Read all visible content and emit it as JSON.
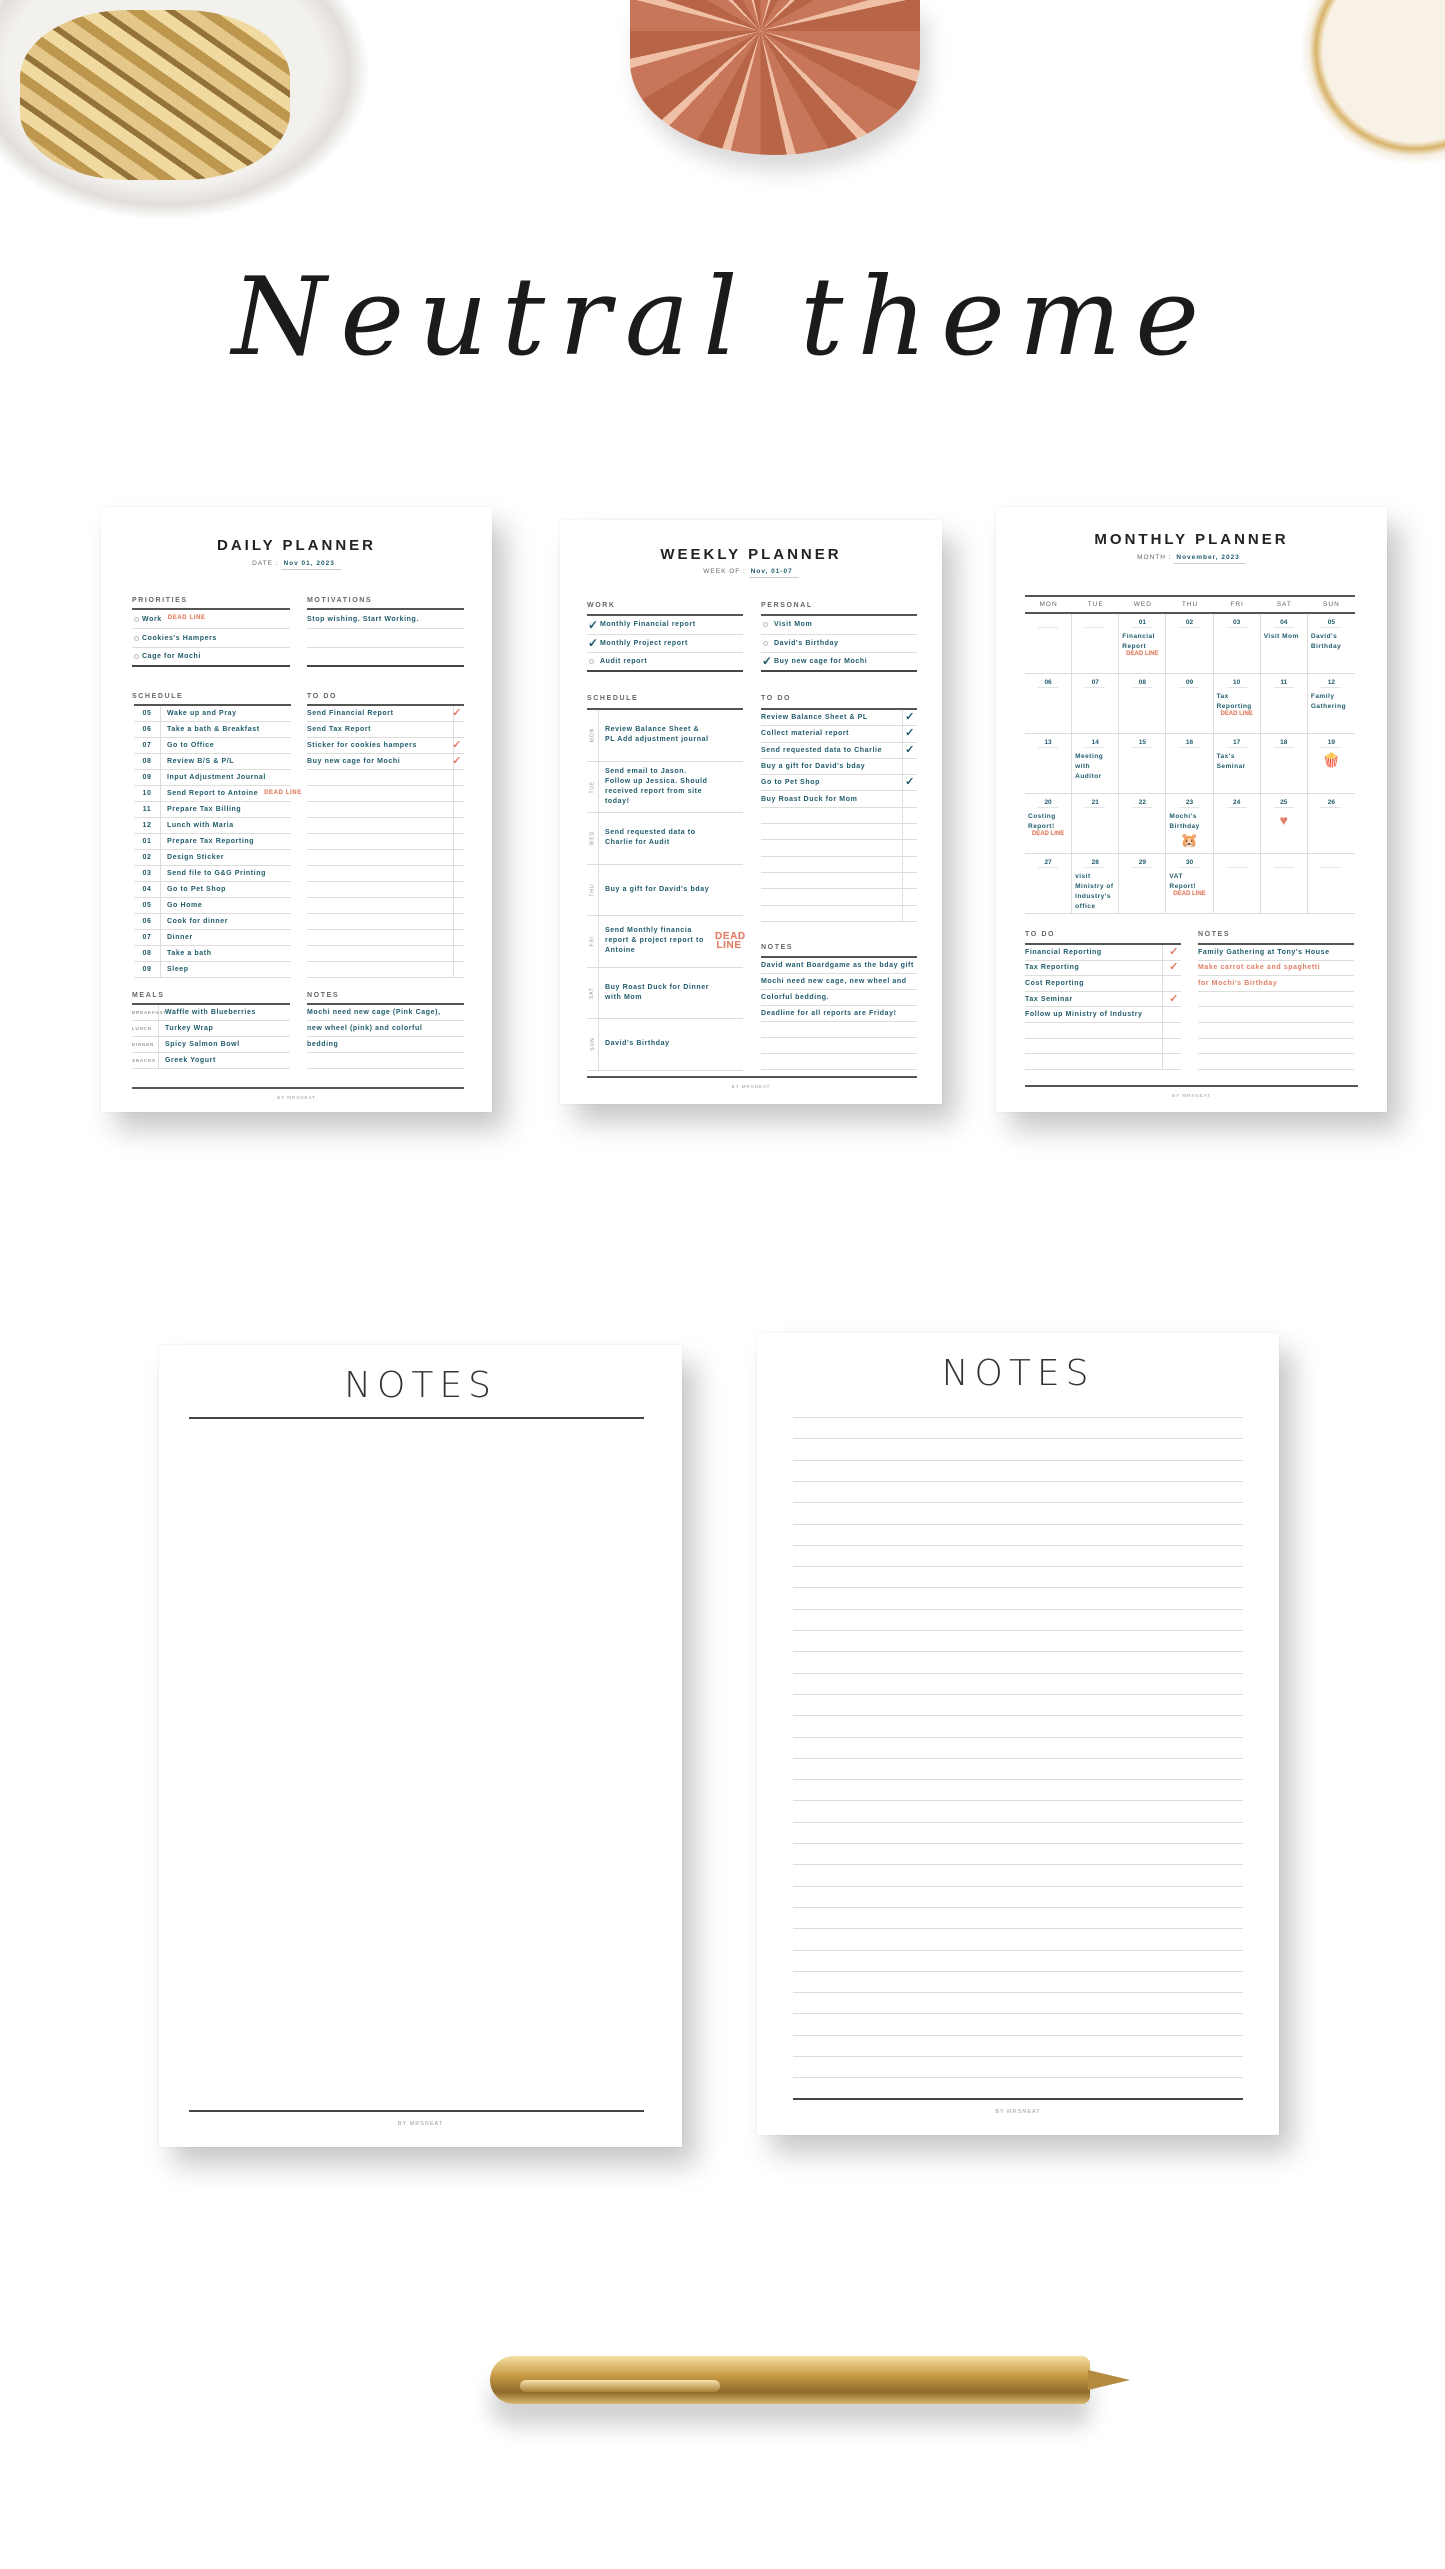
{
  "heading": "Neutral theme",
  "colors": {
    "text": "#1f5b6b",
    "accent": "#e07f66",
    "heading": "#666666"
  },
  "daily": {
    "title": "DAILY PLANNER",
    "date_label": "DATE :",
    "date": "Nov 01, 2023",
    "priorities_heading": "PRIORITIES",
    "priorities": [
      {
        "text": "Work",
        "sticker": "DEAD LINE"
      },
      {
        "text": "Cookies's Hampers"
      },
      {
        "text": "Cage for Mochi"
      }
    ],
    "motivations_heading": "MOTIVATIONS",
    "motivations": [
      "Stop wishing. Start Working.",
      "",
      ""
    ],
    "schedule_heading": "SCHEDULE",
    "schedule": [
      {
        "hour": "05",
        "task": "Wake up and Pray"
      },
      {
        "hour": "06",
        "task": "Take a bath & Breakfast"
      },
      {
        "hour": "07",
        "task": "Go to Office"
      },
      {
        "hour": "08",
        "task": "Review B/S & P/L"
      },
      {
        "hour": "09",
        "task": "Input Adjustment Journal"
      },
      {
        "hour": "10",
        "task": "Send Report to Antoine",
        "sticker": "DEAD LINE"
      },
      {
        "hour": "11",
        "task": "Prepare Tax Billing"
      },
      {
        "hour": "12",
        "task": "Lunch with Maria"
      },
      {
        "hour": "01",
        "task": "Prepare Tax Reporting"
      },
      {
        "hour": "02",
        "task": "Design Sticker"
      },
      {
        "hour": "03",
        "task": "Send file to G&G Printing"
      },
      {
        "hour": "04",
        "task": "Go to Pet Shop"
      },
      {
        "hour": "05",
        "task": "Go Home"
      },
      {
        "hour": "06",
        "task": "Cook for dinner"
      },
      {
        "hour": "07",
        "task": "Dinner"
      },
      {
        "hour": "08",
        "task": "Take a bath"
      },
      {
        "hour": "09",
        "task": "Sleep"
      }
    ],
    "todo_heading": "TO DO",
    "todo": [
      {
        "text": "Send Financial Report",
        "done": true
      },
      {
        "text": "Send Tax Report",
        "done": false
      },
      {
        "text": "Sticker for cookies hampers",
        "done": true
      },
      {
        "text": "Buy new cage for Mochi",
        "done": true
      },
      {
        "text": ""
      },
      {
        "text": ""
      },
      {
        "text": ""
      },
      {
        "text": ""
      },
      {
        "text": ""
      },
      {
        "text": ""
      },
      {
        "text": ""
      },
      {
        "text": ""
      },
      {
        "text": ""
      },
      {
        "text": ""
      },
      {
        "text": ""
      },
      {
        "text": ""
      },
      {
        "text": ""
      }
    ],
    "meals_heading": "MEALS",
    "meals": [
      {
        "label": "BREAKFAST",
        "text": "Waffle with Blueberries"
      },
      {
        "label": "LUNCH",
        "text": "Turkey Wrap"
      },
      {
        "label": "DINNER",
        "text": "Spicy Salmon Bowl"
      },
      {
        "label": "SNACKS",
        "text": "Greek Yogurt"
      }
    ],
    "notes_heading": "NOTES",
    "notes": [
      "Mochi need new cage (Pink Cage),",
      "new wheel (pink) and colorful",
      "bedding",
      ""
    ],
    "footer": "BY MRSNEAT"
  },
  "weekly": {
    "title": "WEEKLY PLANNER",
    "week_label": "WEEK OF :",
    "week": "Nov, 01-07",
    "work_heading": "WORK",
    "work": [
      {
        "text": "Monthly Financial report",
        "done": true
      },
      {
        "text": "Monthly Project report",
        "done": true
      },
      {
        "text": "Audit report",
        "done": false
      }
    ],
    "personal_heading": "PERSONAL",
    "personal": [
      {
        "text": "Visit Mom",
        "done": false
      },
      {
        "text": "David's Birthday",
        "done": false
      },
      {
        "text": "Buy new cage for Mochi",
        "done": true
      }
    ],
    "schedule_heading": "SCHEDULE",
    "schedule": [
      {
        "day": "MON",
        "text": "Review Balance Sheet & PL Add adjustment journal"
      },
      {
        "day": "TUE",
        "text": "Send email to Jason. Follow up Jessica. Should received report from site today!"
      },
      {
        "day": "WED",
        "text": "Send requested data to Charlie for Audit"
      },
      {
        "day": "THU",
        "text": "Buy a gift for David's bday"
      },
      {
        "day": "FRI",
        "text": "Send Monthly financia report & project report to Antoine",
        "sticker": "DEAD LINE"
      },
      {
        "day": "SAT",
        "text": "Buy Roast Duck for Dinner with Mom"
      },
      {
        "day": "SUN",
        "text": "David's Birthday"
      }
    ],
    "todo_heading": "TO DO",
    "todo": [
      {
        "text": "Review Balance Sheet & PL",
        "done": true
      },
      {
        "text": "Collect material report",
        "done": true
      },
      {
        "text": "Send requested data to Charlie",
        "done": true
      },
      {
        "text": "Buy a gift for David's bday",
        "done": false
      },
      {
        "text": "Go to Pet Shop",
        "done": true
      },
      {
        "text": "Buy Roast Duck for Mom",
        "done": false
      },
      {
        "text": ""
      },
      {
        "text": ""
      },
      {
        "text": ""
      },
      {
        "text": ""
      },
      {
        "text": ""
      },
      {
        "text": ""
      },
      {
        "text": ""
      }
    ],
    "notes_heading": "NOTES",
    "notes": [
      "David want Boardgame as the bday gift",
      "Mochi need new cage, new wheel and",
      "Colorful bedding.",
      "Deadline for all reports are Friday!",
      "",
      "",
      ""
    ],
    "footer": "BY MRSNEAT"
  },
  "monthly": {
    "title": "MONTHLY PLANNER",
    "month_label": "MONTH :",
    "month": "November, 2023",
    "weekdays": [
      "MON",
      "TUE",
      "WED",
      "THU",
      "FRI",
      "SAT",
      "SUN"
    ],
    "cells": [
      {
        "date": ""
      },
      {
        "date": ""
      },
      {
        "date": "01",
        "event": "Financial Report",
        "sticker": "DEAD LINE"
      },
      {
        "date": "02"
      },
      {
        "date": "03"
      },
      {
        "date": "04",
        "event": "Visit Mom"
      },
      {
        "date": "05",
        "event": "David's Birthday"
      },
      {
        "date": "06"
      },
      {
        "date": "07"
      },
      {
        "date": "08"
      },
      {
        "date": "09"
      },
      {
        "date": "10",
        "event": "Tax Reporting",
        "sticker": "DEAD LINE"
      },
      {
        "date": "11"
      },
      {
        "date": "12",
        "event": "Family Gathering"
      },
      {
        "date": "13"
      },
      {
        "date": "14",
        "event": "Meeting with Auditor"
      },
      {
        "date": "15"
      },
      {
        "date": "16"
      },
      {
        "date": "17",
        "event": "Tax's Seminar"
      },
      {
        "date": "18"
      },
      {
        "date": "19",
        "icon": "popcorn"
      },
      {
        "date": "20",
        "event": "Costing Report!",
        "sticker": "DEAD LINE"
      },
      {
        "date": "21"
      },
      {
        "date": "22"
      },
      {
        "date": "23",
        "event": "Mochi's Birthday",
        "icon": "hamster"
      },
      {
        "date": "24"
      },
      {
        "date": "25",
        "icon": "heart"
      },
      {
        "date": "26"
      },
      {
        "date": "27"
      },
      {
        "date": "28",
        "event": "visit Ministry of Industry's office"
      },
      {
        "date": "29"
      },
      {
        "date": "30",
        "event": "VAT Report!",
        "sticker": "DEAD LINE"
      },
      {
        "date": ""
      },
      {
        "date": ""
      },
      {
        "date": ""
      }
    ],
    "todo_heading": "TO DO",
    "todo": [
      {
        "text": "Financial Reporting",
        "done": true
      },
      {
        "text": "Tax Reporting",
        "done": true
      },
      {
        "text": "Cost Reporting",
        "done": false
      },
      {
        "text": "Tax Seminar",
        "done": true
      },
      {
        "text": "Follow up Ministry of Industry",
        "done": false
      },
      {
        "text": ""
      },
      {
        "text": ""
      },
      {
        "text": ""
      }
    ],
    "notes_heading": "NOTES",
    "notes": [
      {
        "text": "Family Gathering at Tony's House"
      },
      {
        "text": "Make carrot cake and spaghetti",
        "accent": true
      },
      {
        "text": "for Mochi's Birthday",
        "accent": true
      },
      {
        "text": ""
      },
      {
        "text": ""
      },
      {
        "text": ""
      },
      {
        "text": ""
      },
      {
        "text": ""
      }
    ],
    "footer": "BY MRSNEAT"
  },
  "notes_plain": {
    "title": "NOTES",
    "footer": "BY MRSNEAT"
  },
  "notes_lined": {
    "title": "NOTES",
    "footer": "BY MRSNEAT",
    "line_count": 32
  }
}
